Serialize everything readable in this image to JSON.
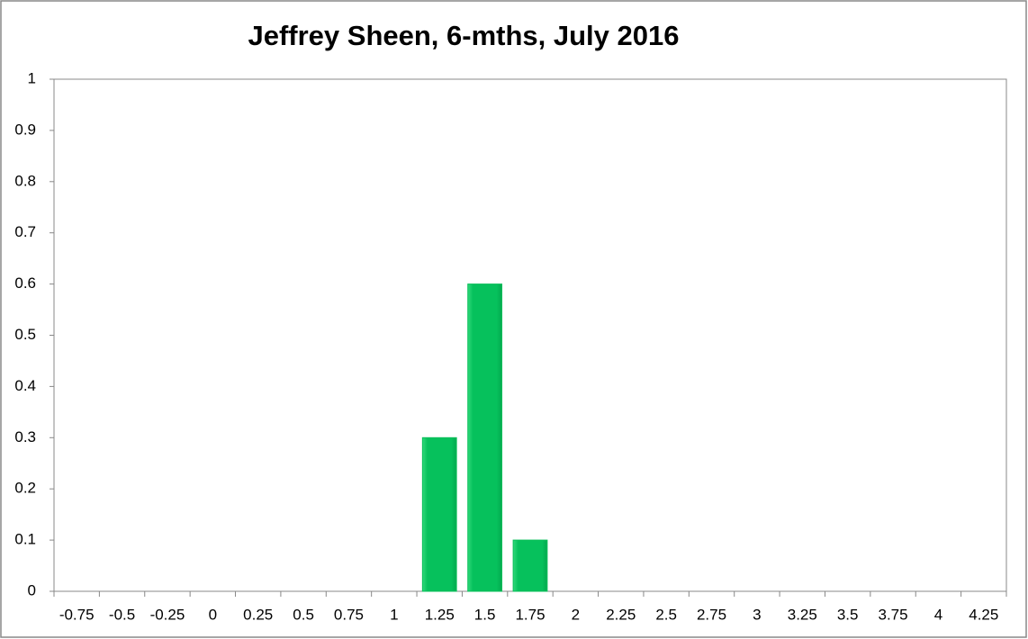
{
  "chart_data": {
    "type": "bar",
    "title": "Jeffrey Sheen, 6-mths, July 2016",
    "categories": [
      "-0.75",
      "-0.5",
      "-0.25",
      "0",
      "0.25",
      "0.5",
      "0.75",
      "1",
      "1.25",
      "1.5",
      "1.75",
      "2",
      "2.25",
      "2.5",
      "2.75",
      "3",
      "3.25",
      "3.5",
      "3.75",
      "4",
      "4.25"
    ],
    "values": [
      0,
      0,
      0,
      0,
      0,
      0,
      0,
      0,
      0.3,
      0.6,
      0.1,
      0,
      0,
      0,
      0,
      0,
      0,
      0,
      0,
      0,
      0
    ],
    "color": "#0abf5a",
    "ylim": [
      0,
      1
    ],
    "yticks": [
      0,
      0.1,
      0.2,
      0.3,
      0.4,
      0.5,
      0.6,
      0.7,
      0.8,
      0.9,
      1
    ],
    "grid": false
  }
}
